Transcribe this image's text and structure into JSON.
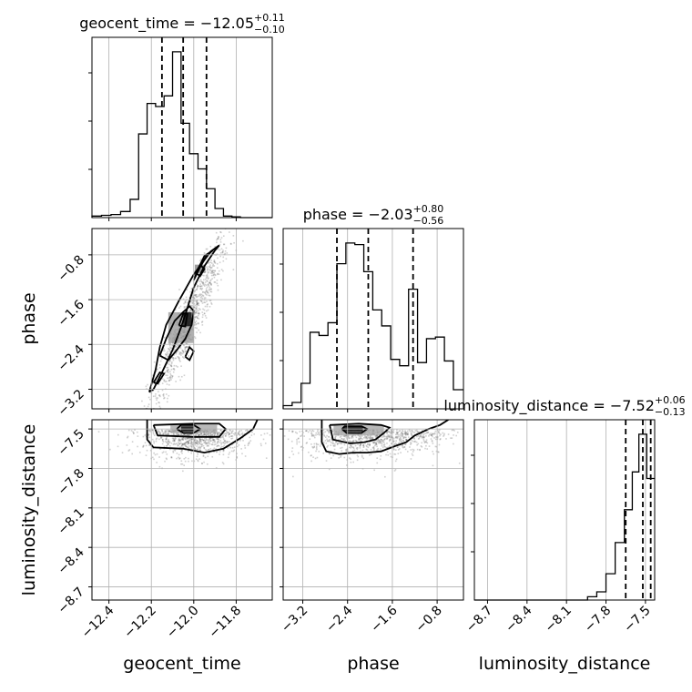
{
  "chart_data": {
    "type": "corner",
    "parameters": [
      "geocent_time",
      "phase",
      "luminosity_distance"
    ],
    "axis_labels": [
      "geocent_time",
      "phase",
      "luminosity_distance"
    ],
    "ranges": {
      "geocent_time": [
        -12.48,
        -11.63
      ],
      "phase": [
        -3.55,
        -0.33
      ],
      "luminosity_distance": [
        -8.8,
        -7.43
      ]
    },
    "ticks": {
      "geocent_time": {
        "values": [
          -12.4,
          -12.2,
          -12.0,
          -11.8
        ],
        "labels": [
          "−12.4",
          "−12.2",
          "−12.0",
          "−11.8"
        ]
      },
      "phase": {
        "values": [
          -3.2,
          -2.4,
          -1.6,
          -0.8
        ],
        "labels": [
          "−3.2",
          "−2.4",
          "−1.6",
          "−0.8"
        ]
      },
      "luminosity_distance": {
        "values": [
          -8.7,
          -8.4,
          -8.1,
          -7.8,
          -7.5
        ],
        "labels": [
          "−8.7",
          "−8.4",
          "−8.1",
          "−7.8",
          "−7.5"
        ]
      }
    },
    "titles": {
      "geocent_time": {
        "text": "geocent_time = −12.05",
        "plus": "+0.11",
        "minus": "−0.10"
      },
      "phase": {
        "text": "phase = −2.03",
        "plus": "+0.80",
        "minus": "−0.56"
      },
      "luminosity_distance": {
        "text": "luminosity_distance = −7.52",
        "plus": "+0.06",
        "minus": "−0.13"
      }
    },
    "quantiles": {
      "geocent_time": [
        -12.15,
        -12.05,
        -11.94
      ],
      "phase": [
        -2.59,
        -2.03,
        -1.23
      ],
      "luminosity_distance": [
        -7.65,
        -7.52,
        -7.46
      ]
    },
    "histograms": {
      "geocent_time": {
        "edges": [
          -12.48,
          -12.435,
          -12.39,
          -12.345,
          -12.3,
          -12.26,
          -12.22,
          -12.18,
          -12.14,
          -12.1,
          -12.06,
          -12.02,
          -11.98,
          -11.94,
          -11.9,
          -11.86,
          -11.82,
          -11.78,
          -11.74,
          -11.7,
          -11.63
        ],
        "counts": [
          1,
          1.5,
          2,
          4,
          12,
          55,
          75,
          73,
          80,
          109,
          62,
          42,
          32,
          19,
          6,
          1,
          0.5,
          0,
          0,
          0
        ]
      },
      "phase": {
        "edges": [
          -3.55,
          -3.39,
          -3.23,
          -3.07,
          -2.91,
          -2.75,
          -2.59,
          -2.43,
          -2.27,
          -2.11,
          -1.95,
          -1.79,
          -1.63,
          -1.47,
          -1.31,
          -1.15,
          -0.99,
          -0.83,
          -0.67,
          -0.51,
          -0.33
        ],
        "counts": [
          2,
          4,
          16,
          48,
          46,
          54,
          91,
          104,
          103,
          86,
          62,
          52,
          31,
          27,
          75,
          29,
          44,
          45,
          30,
          12
        ]
      },
      "luminosity_distance": {
        "edges": [
          -8.8,
          -8.71,
          -8.64,
          -8.57,
          -8.5,
          -8.43,
          -8.36,
          -8.29,
          -8.22,
          -8.15,
          -8.08,
          -8.01,
          -7.94,
          -7.87,
          -7.8,
          -7.73,
          -7.66,
          -7.6,
          -7.55,
          -7.49,
          -7.43
        ],
        "counts": [
          0,
          0,
          0,
          0,
          0,
          0,
          0,
          0,
          0,
          0,
          0,
          0,
          2,
          5,
          16,
          35,
          55,
          78,
          101,
          74
        ]
      }
    },
    "contours": {
      "phase_vs_geocent_time": [
        [
          [
            -12.21,
            -3.25
          ],
          [
            -12.18,
            -2.85
          ],
          [
            -12.16,
            -2.45
          ],
          [
            -12.13,
            -2.05
          ],
          [
            -12.07,
            -1.62
          ],
          [
            -12.0,
            -1.15
          ],
          [
            -11.92,
            -0.74
          ],
          [
            -11.88,
            -0.63
          ],
          [
            -11.9,
            -0.72
          ],
          [
            -11.95,
            -1.0
          ],
          [
            -12.0,
            -1.38
          ],
          [
            -12.03,
            -1.75
          ],
          [
            -12.06,
            -2.1
          ],
          [
            -12.1,
            -2.5
          ],
          [
            -12.15,
            -2.9
          ],
          [
            -12.19,
            -3.2
          ],
          [
            -12.21,
            -3.25
          ]
        ],
        [
          [
            -12.16,
            -2.6
          ],
          [
            -12.13,
            -2.3
          ],
          [
            -12.09,
            -1.98
          ],
          [
            -12.05,
            -1.82
          ],
          [
            -12.02,
            -1.72
          ],
          [
            -12.0,
            -1.8
          ],
          [
            -12.01,
            -2.05
          ],
          [
            -12.04,
            -2.3
          ],
          [
            -12.08,
            -2.5
          ],
          [
            -12.12,
            -2.68
          ],
          [
            -12.16,
            -2.6
          ]
        ],
        [
          [
            -12.0,
            -1.25
          ],
          [
            -11.97,
            -1.02
          ],
          [
            -11.94,
            -0.82
          ],
          [
            -11.91,
            -0.72
          ],
          [
            -11.95,
            -0.82
          ],
          [
            -11.98,
            -1.05
          ],
          [
            -12.0,
            -1.25
          ]
        ],
        [
          [
            -12.19,
            -3.08
          ],
          [
            -12.16,
            -2.9
          ],
          [
            -12.14,
            -2.92
          ],
          [
            -12.17,
            -3.1
          ],
          [
            -12.19,
            -3.08
          ]
        ],
        [
          [
            -12.07,
            -2.06
          ],
          [
            -12.05,
            -1.85
          ],
          [
            -12.03,
            -1.85
          ],
          [
            -12.04,
            -2.08
          ],
          [
            -12.07,
            -2.06
          ]
        ],
        [
          [
            -11.99,
            -1.12
          ],
          [
            -11.97,
            -0.98
          ],
          [
            -11.95,
            -1.05
          ],
          [
            -11.97,
            -1.18
          ],
          [
            -11.99,
            -1.12
          ]
        ],
        [
          [
            -12.04,
            -2.62
          ],
          [
            -12.02,
            -2.45
          ],
          [
            -12.0,
            -2.52
          ],
          [
            -12.02,
            -2.68
          ],
          [
            -12.04,
            -2.62
          ]
        ]
      ],
      "luminosity_distance_vs_geocent_time": [
        [
          [
            -12.22,
            -7.43
          ],
          [
            -12.22,
            -7.58
          ],
          [
            -12.19,
            -7.64
          ],
          [
            -12.05,
            -7.65
          ],
          [
            -11.95,
            -7.68
          ],
          [
            -11.86,
            -7.65
          ],
          [
            -11.78,
            -7.57
          ],
          [
            -11.72,
            -7.5
          ],
          [
            -11.7,
            -7.43
          ]
        ],
        [
          [
            -12.19,
            -7.47
          ],
          [
            -12.17,
            -7.55
          ],
          [
            -12.0,
            -7.56
          ],
          [
            -11.88,
            -7.56
          ],
          [
            -11.85,
            -7.5
          ],
          [
            -11.88,
            -7.46
          ],
          [
            -12.0,
            -7.46
          ],
          [
            -12.19,
            -7.47
          ]
        ],
        [
          [
            -12.08,
            -7.5
          ],
          [
            -12.05,
            -7.53
          ],
          [
            -12.0,
            -7.53
          ],
          [
            -11.97,
            -7.5
          ],
          [
            -12.0,
            -7.47
          ],
          [
            -12.06,
            -7.47
          ],
          [
            -12.08,
            -7.5
          ]
        ]
      ],
      "luminosity_distance_vs_phase": [
        [
          [
            -2.86,
            -7.43
          ],
          [
            -2.86,
            -7.6
          ],
          [
            -2.78,
            -7.67
          ],
          [
            -2.55,
            -7.69
          ],
          [
            -2.3,
            -7.68
          ],
          [
            -2.05,
            -7.68
          ],
          [
            -1.8,
            -7.67
          ],
          [
            -1.55,
            -7.63
          ],
          [
            -1.35,
            -7.6
          ],
          [
            -1.2,
            -7.55
          ],
          [
            -0.95,
            -7.5
          ],
          [
            -0.75,
            -7.47
          ],
          [
            -0.6,
            -7.43
          ]
        ],
        [
          [
            -2.72,
            -7.47
          ],
          [
            -2.66,
            -7.58
          ],
          [
            -2.35,
            -7.61
          ],
          [
            -2.1,
            -7.6
          ],
          [
            -1.9,
            -7.58
          ],
          [
            -1.75,
            -7.53
          ],
          [
            -1.65,
            -7.49
          ],
          [
            -1.8,
            -7.47
          ],
          [
            -2.2,
            -7.46
          ],
          [
            -2.72,
            -7.47
          ]
        ],
        [
          [
            -2.5,
            -7.5
          ],
          [
            -2.42,
            -7.53
          ],
          [
            -2.15,
            -7.53
          ],
          [
            -2.05,
            -7.5
          ],
          [
            -2.15,
            -7.48
          ],
          [
            -2.45,
            -7.48
          ],
          [
            -2.5,
            -7.5
          ]
        ]
      ]
    },
    "density_peaks": {
      "phase_vs_geocent_time": [
        {
          "x": -12.03,
          "y": -1.95,
          "w": 0.04,
          "h": 0.25,
          "level": 1.0
        },
        {
          "x": -12.06,
          "y": -2.1,
          "w": 0.12,
          "h": 0.55,
          "level": 0.35
        },
        {
          "x": -11.97,
          "y": -1.05,
          "w": 0.05,
          "h": 0.15,
          "level": 0.45
        }
      ],
      "luminosity_distance_vs_geocent_time": [
        {
          "x": -12.03,
          "y": -7.5,
          "w": 0.06,
          "h": 0.04,
          "level": 1.0
        },
        {
          "x": -12.0,
          "y": -7.5,
          "w": 0.22,
          "h": 0.06,
          "level": 0.3
        }
      ],
      "luminosity_distance_vs_phase": [
        {
          "x": -2.3,
          "y": -7.5,
          "w": 0.35,
          "h": 0.04,
          "level": 1.0
        },
        {
          "x": -2.2,
          "y": -7.51,
          "w": 0.9,
          "h": 0.08,
          "level": 0.3
        }
      ]
    },
    "grid": true
  }
}
